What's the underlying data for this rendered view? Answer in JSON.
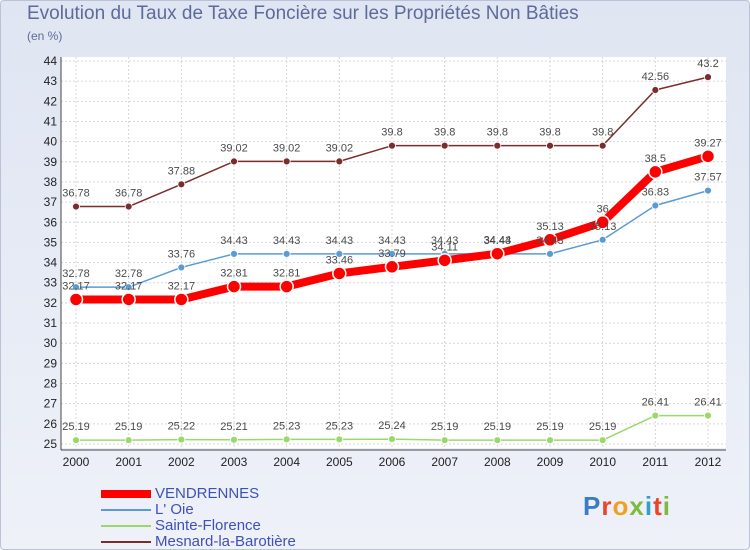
{
  "title": "Evolution du Taux de Taxe Foncière sur les Propriétés Non Bâties",
  "unit_label": "(en %)",
  "logo_text": "Proxiti",
  "chart_data": {
    "type": "line",
    "title": "Evolution du Taux de Taxe Foncière sur les Propriétés Non Bâties",
    "ylabel": "(en %)",
    "xlabel": "",
    "ylim": [
      25,
      44
    ],
    "y_ticks": [
      25,
      26,
      27,
      28,
      29,
      30,
      31,
      32,
      33,
      34,
      35,
      36,
      37,
      38,
      39,
      40,
      41,
      42,
      43,
      44
    ],
    "categories": [
      "2000",
      "2001",
      "2002",
      "2003",
      "2004",
      "2005",
      "2006",
      "2007",
      "2008",
      "2009",
      "2010",
      "2011",
      "2012"
    ],
    "grid": true,
    "legend_position": "bottom-left",
    "series": [
      {
        "name": "VENDRENNES",
        "color": "#ff0000",
        "values": [
          32.17,
          32.17,
          32.17,
          32.81,
          32.81,
          33.46,
          33.79,
          34.11,
          34.44,
          35.13,
          36.0,
          38.5,
          39.27
        ],
        "labels": [
          "32.17",
          "32.17",
          "32.17",
          "32.81",
          "32.81",
          "33.46",
          "33.79",
          "34.11",
          "34.44",
          "35.13",
          "36",
          "38.5",
          "39.27"
        ]
      },
      {
        "name": "L' Oie",
        "color": "#5b9bd5",
        "values": [
          32.78,
          32.78,
          33.76,
          34.43,
          34.43,
          34.43,
          34.43,
          34.43,
          34.43,
          34.43,
          35.13,
          36.83,
          37.57
        ],
        "labels": [
          "32.78",
          "32.78",
          "33.76",
          "34.43",
          "34.43",
          "34.43",
          "34.43",
          "34.43",
          "34.43",
          "34.43",
          "35.13",
          "36.83",
          "37.57"
        ]
      },
      {
        "name": "Sainte-Florence",
        "color": "#99d96b",
        "values": [
          25.19,
          25.19,
          25.22,
          25.21,
          25.23,
          25.23,
          25.24,
          25.19,
          25.19,
          25.19,
          25.19,
          26.41,
          26.41
        ],
        "labels": [
          "25.19",
          "25.19",
          "25.22",
          "25.21",
          "25.23",
          "25.23",
          "25.24",
          "25.19",
          "25.19",
          "25.19",
          "25.19",
          "26.41",
          "26.41"
        ]
      },
      {
        "name": "Mesnard-la-Barotière",
        "color": "#7b2d2d",
        "values": [
          36.78,
          36.78,
          37.88,
          39.02,
          39.02,
          39.02,
          39.8,
          39.8,
          39.8,
          39.8,
          39.8,
          42.56,
          43.2
        ],
        "labels": [
          "36.78",
          "36.78",
          "37.88",
          "39.02",
          "39.02",
          "39.02",
          "39.8",
          "39.8",
          "39.8",
          "39.8",
          "39.8",
          "42.56",
          "43.2"
        ]
      }
    ]
  }
}
